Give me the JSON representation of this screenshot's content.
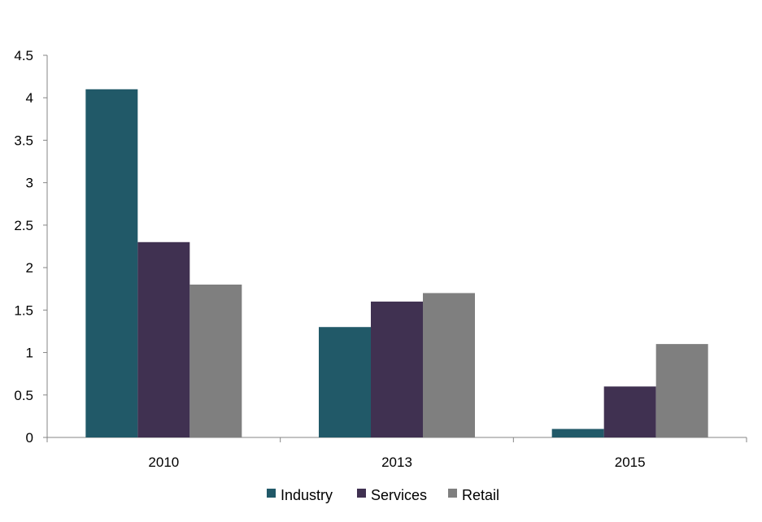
{
  "chart_data": {
    "type": "bar",
    "title": "",
    "xlabel": "",
    "ylabel": "",
    "categories": [
      "2010",
      "2013",
      "2015"
    ],
    "series": [
      {
        "name": "Industry",
        "color": "#215968",
        "values": [
          4.1,
          1.3,
          0.1
        ]
      },
      {
        "name": "Services",
        "color": "#403151",
        "values": [
          2.3,
          1.6,
          0.6
        ]
      },
      {
        "name": "Retail",
        "color": "#7f7f7f",
        "values": [
          1.8,
          1.7,
          1.1
        ]
      }
    ],
    "ylim": [
      0,
      4.5
    ],
    "yticks": [
      "0",
      "0.5",
      "1",
      "1.5",
      "2",
      "2.5",
      "3",
      "3.5",
      "4",
      "4.5"
    ],
    "grid": false,
    "legend_position": "bottom"
  }
}
